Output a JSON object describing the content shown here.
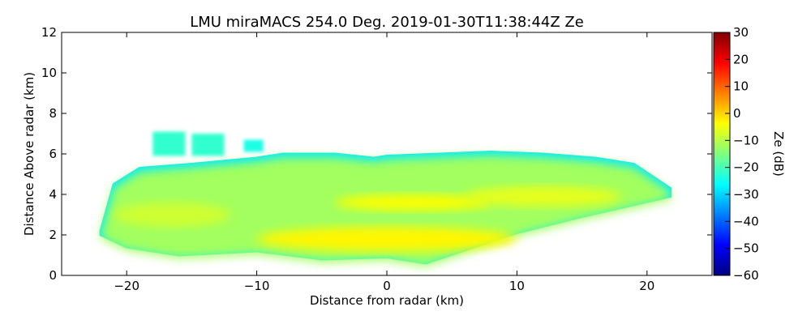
{
  "chart_data": {
    "type": "heatmap",
    "title": "LMU miraMACS 254.0 Deg. 2019-01-30T11:38:44Z  Ze",
    "xlabel": "Distance from radar (km)",
    "ylabel": "Distance Above radar  (km)",
    "xlim": [
      -25,
      25
    ],
    "ylim": [
      0,
      12
    ],
    "x_ticks": [
      -20,
      -10,
      0,
      10,
      20
    ],
    "y_ticks": [
      0,
      2,
      4,
      6,
      8,
      10,
      12
    ],
    "x_tick_labels": [
      "−20",
      "−10",
      "0",
      "10",
      "20"
    ],
    "y_tick_labels": [
      "0",
      "2",
      "4",
      "6",
      "8",
      "10",
      "12"
    ],
    "grid": false,
    "colorbar": {
      "label": "Ze (dB)",
      "range": [
        -60,
        30
      ],
      "ticks": [
        -60,
        -50,
        -40,
        -30,
        -20,
        -10,
        0,
        10,
        20,
        30
      ],
      "tick_labels": [
        "−60",
        "−50",
        "−40",
        "−30",
        "−20",
        "−10",
        "0",
        "10",
        "20",
        "30"
      ],
      "colormap": "jet",
      "colormap_stops": [
        "#000080",
        "#0000ff",
        "#0080ff",
        "#00ffff",
        "#80ff80",
        "#ffff00",
        "#ff8000",
        "#ff0000",
        "#800000"
      ]
    },
    "echo_region": {
      "top_height_km": [
        {
          "x": -22,
          "y": 2.2
        },
        {
          "x": -21,
          "y": 4.5
        },
        {
          "x": -19,
          "y": 5.3
        },
        {
          "x": -15,
          "y": 5.5
        },
        {
          "x": -10,
          "y": 5.8
        },
        {
          "x": -8,
          "y": 6.0
        },
        {
          "x": -4,
          "y": 6.0
        },
        {
          "x": -1,
          "y": 5.8
        },
        {
          "x": 0,
          "y": 5.9
        },
        {
          "x": 4,
          "y": 6.0
        },
        {
          "x": 8,
          "y": 6.1
        },
        {
          "x": 12,
          "y": 6.0
        },
        {
          "x": 16,
          "y": 5.8
        },
        {
          "x": 19,
          "y": 5.5
        },
        {
          "x": 21.8,
          "y": 4.3
        }
      ],
      "bottom_height_km": [
        {
          "x": 21.8,
          "y": 3.9
        },
        {
          "x": 15,
          "y": 2.9
        },
        {
          "x": 10,
          "y": 2.1
        },
        {
          "x": 3,
          "y": 0.6
        },
        {
          "x": 0,
          "y": 0.9
        },
        {
          "x": -5,
          "y": 0.8
        },
        {
          "x": -10,
          "y": 1.2
        },
        {
          "x": -16,
          "y": 1.0
        },
        {
          "x": -20,
          "y": 1.4
        },
        {
          "x": -22,
          "y": 2.0
        }
      ],
      "intensity_bands": [
        {
          "x": [
            -10,
            10
          ],
          "y": [
            1.2,
            2.4
          ],
          "ze_db": -3
        },
        {
          "x": [
            -4,
            8
          ],
          "y": [
            3.2,
            4.0
          ],
          "ze_db": -4
        },
        {
          "x": [
            -21,
            -12
          ],
          "y": [
            2.4,
            3.6
          ],
          "ze_db": -8
        },
        {
          "x": [
            6,
            18
          ],
          "y": [
            3.4,
            4.4
          ],
          "ze_db": -6
        }
      ],
      "upper_patches": [
        {
          "x": [
            -18,
            -15.5
          ],
          "y": [
            5.9,
            7.1
          ],
          "ze_db": -22
        },
        {
          "x": [
            -15,
            -12.5
          ],
          "y": [
            5.9,
            7.0
          ],
          "ze_db": -22
        },
        {
          "x": [
            -11,
            -9.5
          ],
          "y": [
            6.1,
            6.7
          ],
          "ze_db": -24
        }
      ],
      "edge_ze_db": -28,
      "fill_ze_db": -12
    }
  }
}
